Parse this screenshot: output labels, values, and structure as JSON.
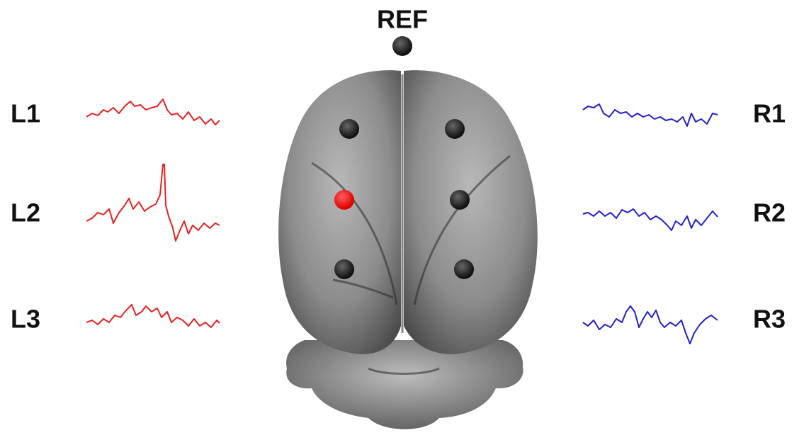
{
  "reference": {
    "label": "REF"
  },
  "left_channels": [
    {
      "label": "L1"
    },
    {
      "label": "L2"
    },
    {
      "label": "L3"
    }
  ],
  "right_channels": [
    {
      "label": "R1"
    },
    {
      "label": "R2"
    },
    {
      "label": "R3"
    }
  ]
}
